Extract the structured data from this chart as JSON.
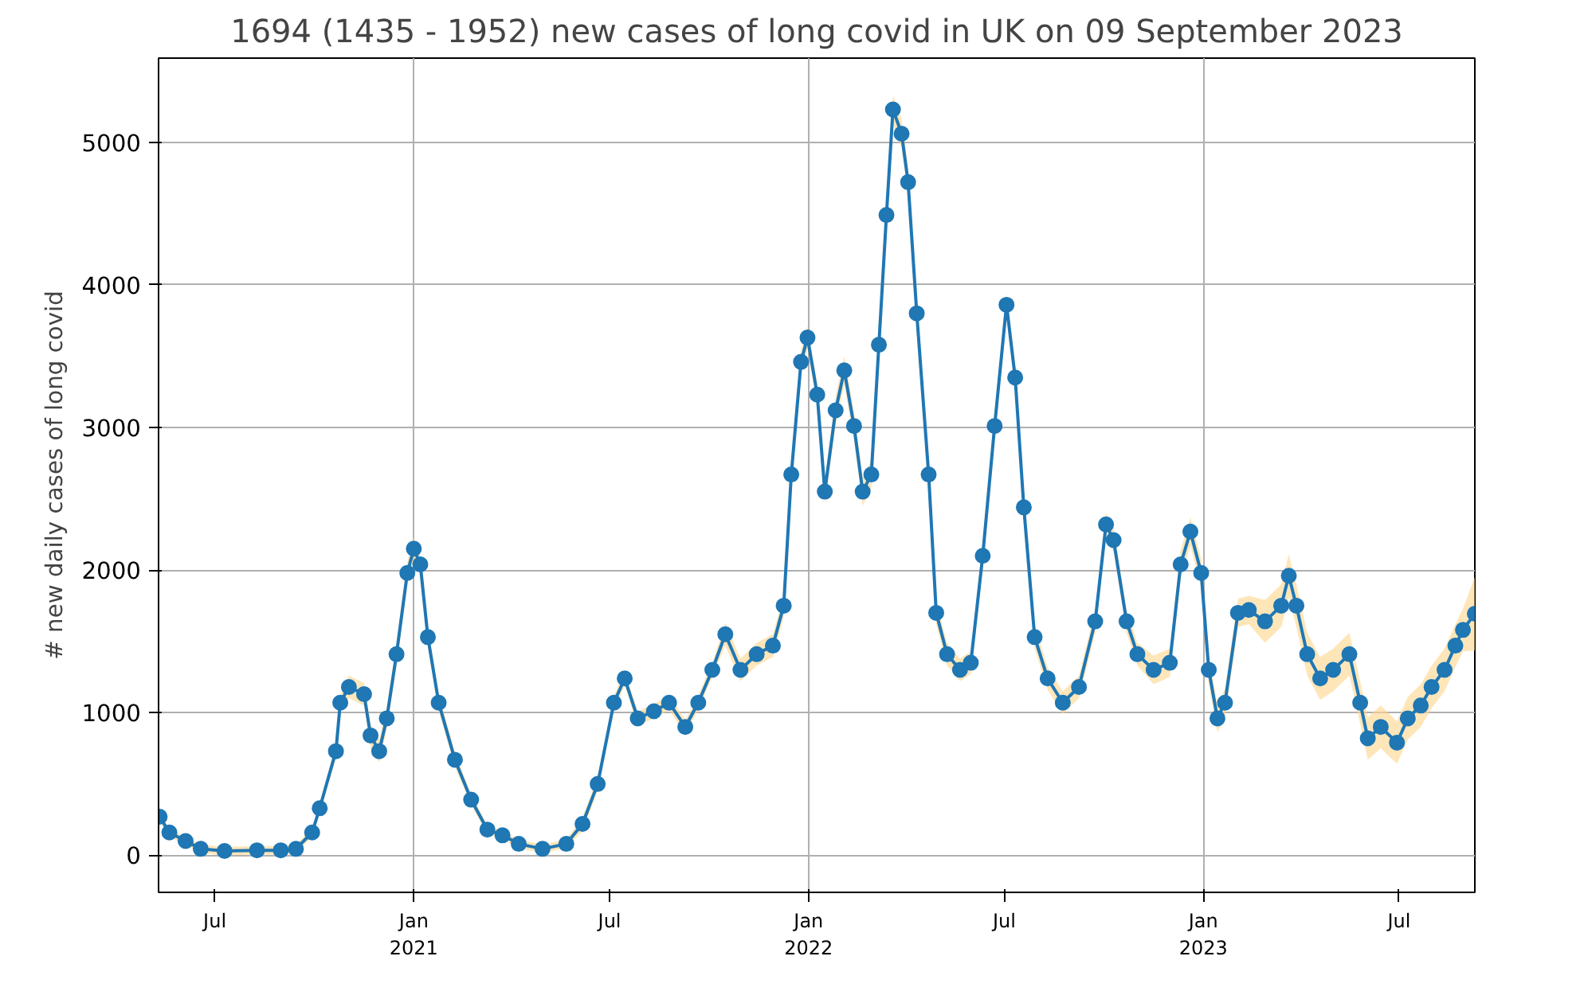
{
  "chart_data": {
    "type": "line",
    "title": "1694 (1435 - 1952) new cases of long covid in UK on 09 September 2023",
    "ylabel": "# new daily cases of long covid",
    "xlim": [
      "2020-05-10",
      "2023-09-09"
    ],
    "ylim": [
      -260,
      5590
    ],
    "xticks": [
      {
        "value": "2020-07-01",
        "label": "Jul"
      },
      {
        "value": "2021-01-01",
        "label": "Jan\n2021"
      },
      {
        "value": "2021-07-01",
        "label": "Jul"
      },
      {
        "value": "2022-01-01",
        "label": "Jan\n2022"
      },
      {
        "value": "2022-07-01",
        "label": "Jul"
      },
      {
        "value": "2023-01-01",
        "label": "Jan\n2023"
      },
      {
        "value": "2023-07-01",
        "label": "Jul"
      }
    ],
    "yticks": [
      0,
      1000,
      2000,
      3000,
      4000,
      5000
    ],
    "grid": true,
    "marker": "circle",
    "line_style": "solid",
    "x": [
      "2020-05-11",
      "2020-05-20",
      "2020-06-04",
      "2020-06-18",
      "2020-07-10",
      "2020-08-09",
      "2020-08-31",
      "2020-09-14",
      "2020-09-29",
      "2020-10-06",
      "2020-10-21",
      "2020-10-25",
      "2020-11-02",
      "2020-11-16",
      "2020-11-22",
      "2020-11-30",
      "2020-12-07",
      "2020-12-16",
      "2020-12-26",
      "2021-01-01",
      "2021-01-07",
      "2021-01-14",
      "2021-01-24",
      "2021-02-08",
      "2021-02-23",
      "2021-03-10",
      "2021-03-24",
      "2021-04-08",
      "2021-04-30",
      "2021-05-22",
      "2021-06-06",
      "2021-06-20",
      "2021-07-05",
      "2021-07-15",
      "2021-07-27",
      "2021-08-11",
      "2021-08-25",
      "2021-09-09",
      "2021-09-21",
      "2021-10-04",
      "2021-10-16",
      "2021-10-30",
      "2021-11-14",
      "2021-11-29",
      "2021-12-09",
      "2021-12-16",
      "2021-12-25",
      "2021-12-31",
      "2022-01-09",
      "2022-01-16",
      "2022-01-26",
      "2022-02-03",
      "2022-02-12",
      "2022-02-20",
      "2022-02-28",
      "2022-03-07",
      "2022-03-14",
      "2022-03-20",
      "2022-03-28",
      "2022-04-03",
      "2022-04-11",
      "2022-04-22",
      "2022-04-29",
      "2022-05-09",
      "2022-05-21",
      "2022-05-31",
      "2022-06-11",
      "2022-06-22",
      "2022-07-03",
      "2022-07-11",
      "2022-07-19",
      "2022-07-29",
      "2022-08-10",
      "2022-08-24",
      "2022-09-08",
      "2022-09-23",
      "2022-10-03",
      "2022-10-10",
      "2022-10-22",
      "2022-11-01",
      "2022-11-16",
      "2022-12-01",
      "2022-12-11",
      "2022-12-20",
      "2022-12-30",
      "2023-01-06",
      "2023-01-14",
      "2023-01-21",
      "2023-02-02",
      "2023-02-12",
      "2023-02-27",
      "2023-03-14",
      "2023-03-21",
      "2023-03-28",
      "2023-04-07",
      "2023-04-19",
      "2023-05-01",
      "2023-05-16",
      "2023-05-26",
      "2023-06-02",
      "2023-06-14",
      "2023-06-29",
      "2023-07-09",
      "2023-07-21",
      "2023-07-31",
      "2023-08-12",
      "2023-08-22",
      "2023-08-29",
      "2023-09-09"
    ],
    "series": [
      {
        "color": "#1f77b4",
        "values": [
          270,
          160,
          100,
          45,
          30,
          35,
          35,
          45,
          160,
          330,
          730,
          1070,
          1180,
          1130,
          840,
          730,
          960,
          1410,
          1980,
          2150,
          2040,
          1530,
          1070,
          670,
          390,
          180,
          140,
          80,
          45,
          80,
          220,
          500,
          1070,
          1240,
          960,
          1010,
          1070,
          900,
          1070,
          1300,
          1550,
          1300,
          1410,
          1470,
          1750,
          2670,
          3460,
          3630,
          3230,
          2550,
          3120,
          3400,
          3010,
          2550,
          2670,
          3580,
          4490,
          5230,
          5060,
          4720,
          3800,
          2670,
          1700,
          1410,
          1300,
          1350,
          2100,
          3010,
          3860,
          3350,
          2440,
          1530,
          1240,
          1070,
          1180,
          1640,
          2320,
          2210,
          1640,
          1410,
          1300,
          1350,
          2040,
          2270,
          1980,
          1300,
          960,
          1070,
          1700,
          1720,
          1640,
          1750,
          1960,
          1750,
          1410,
          1240,
          1300,
          1410,
          1070,
          820,
          900,
          790,
          960,
          1050,
          1180,
          1300,
          1470,
          1580,
          1694
        ],
        "lower": [
          240,
          130,
          70,
          15,
          0,
          5,
          5,
          15,
          130,
          300,
          680,
          1020,
          1100,
          1050,
          760,
          650,
          880,
          1330,
          1900,
          2070,
          1980,
          1470,
          1010,
          620,
          350,
          150,
          110,
          50,
          15,
          50,
          170,
          450,
          1020,
          1190,
          910,
          960,
          1020,
          850,
          1020,
          1250,
          1470,
          1220,
          1330,
          1390,
          1670,
          2590,
          3380,
          3550,
          3150,
          2470,
          3020,
          3300,
          2910,
          2450,
          2570,
          3480,
          4390,
          5130,
          4960,
          4620,
          3720,
          2590,
          1620,
          1330,
          1220,
          1270,
          2020,
          2930,
          3780,
          3270,
          2360,
          1450,
          1160,
          990,
          1100,
          1560,
          2240,
          2130,
          1560,
          1330,
          1200,
          1250,
          1940,
          2170,
          1880,
          1200,
          860,
          970,
          1600,
          1620,
          1490,
          1600,
          1810,
          1600,
          1260,
          1090,
          1150,
          1260,
          920,
          670,
          750,
          640,
          810,
          900,
          1030,
          1150,
          1320,
          1430,
          1435
        ],
        "upper": [
          300,
          190,
          130,
          75,
          60,
          65,
          65,
          75,
          190,
          360,
          780,
          1120,
          1260,
          1210,
          920,
          810,
          1040,
          1490,
          2060,
          2230,
          2100,
          1590,
          1130,
          720,
          430,
          210,
          170,
          110,
          75,
          110,
          270,
          550,
          1120,
          1290,
          1010,
          1060,
          1120,
          950,
          1120,
          1350,
          1630,
          1380,
          1490,
          1550,
          1830,
          2750,
          3540,
          3710,
          3310,
          2630,
          3220,
          3500,
          3110,
          2650,
          2770,
          3680,
          4590,
          5330,
          5160,
          4820,
          3880,
          2750,
          1780,
          1490,
          1380,
          1430,
          2180,
          3090,
          3940,
          3430,
          2520,
          1610,
          1320,
          1150,
          1260,
          1720,
          2400,
          2290,
          1720,
          1490,
          1400,
          1450,
          2140,
          2370,
          2080,
          1400,
          1060,
          1170,
          1800,
          1820,
          1790,
          1900,
          2110,
          1900,
          1560,
          1390,
          1450,
          1560,
          1220,
          970,
          1050,
          940,
          1110,
          1200,
          1330,
          1450,
          1620,
          1730,
          1952
        ]
      }
    ]
  }
}
